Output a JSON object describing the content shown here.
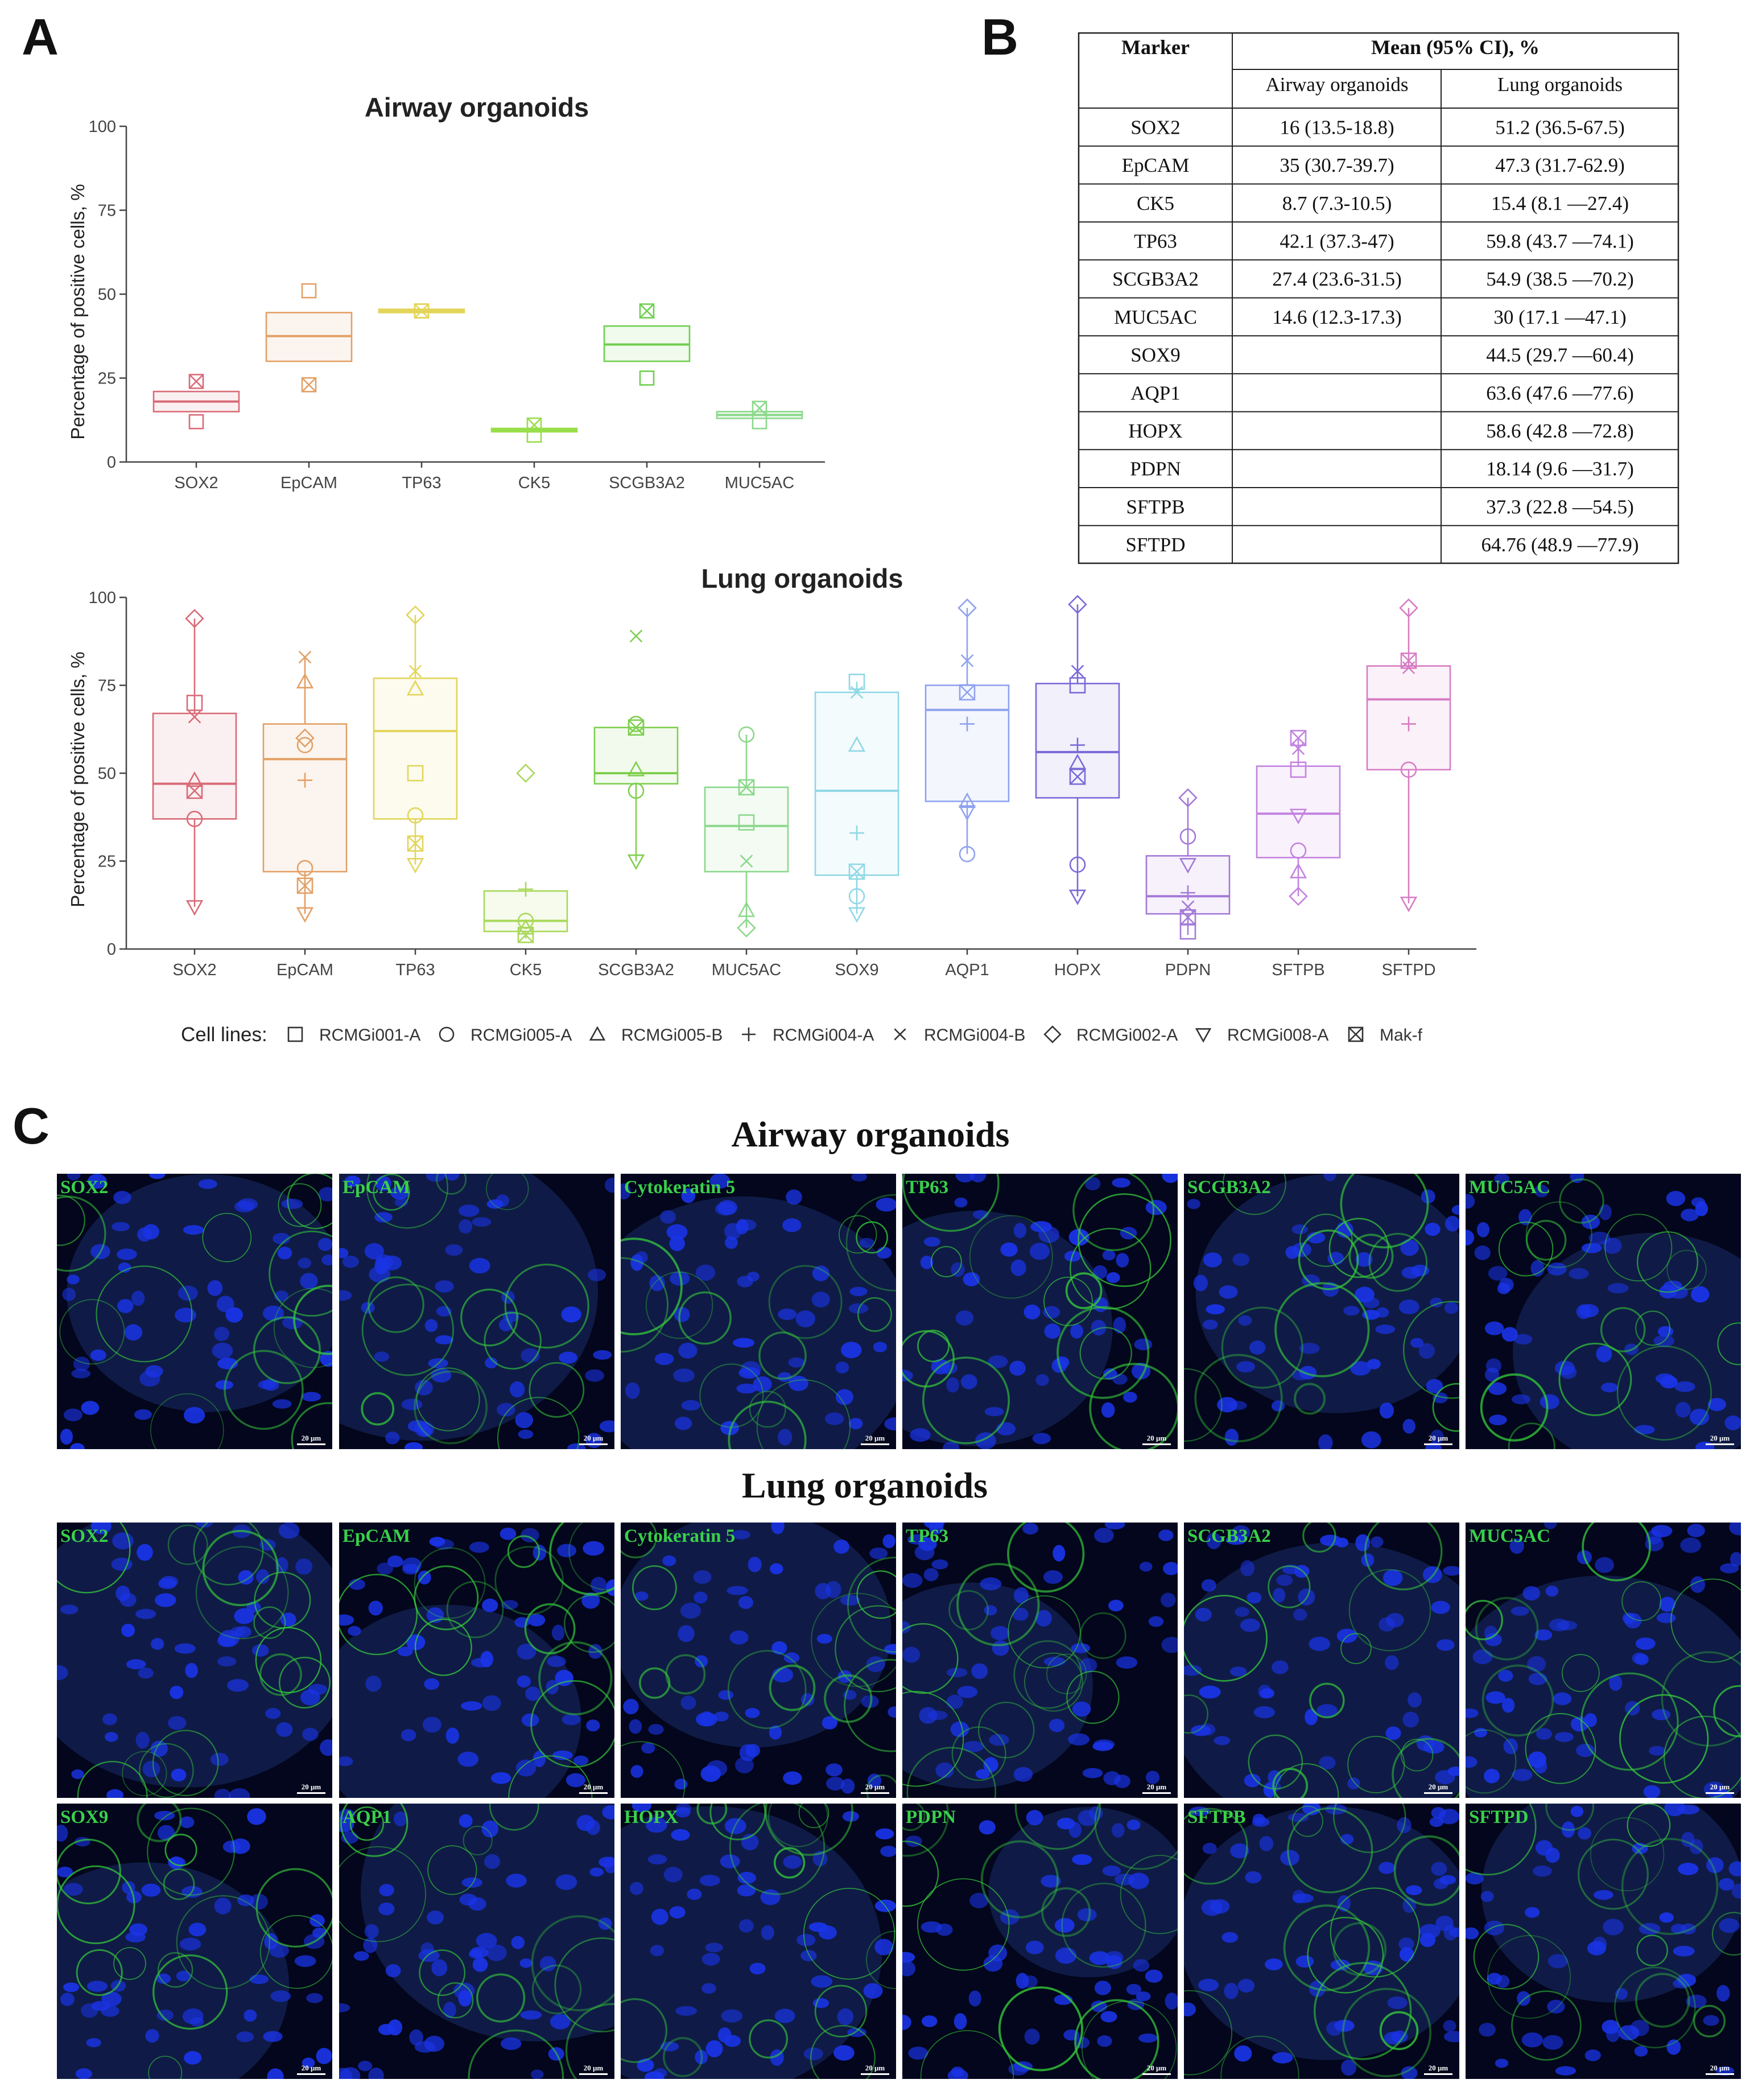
{
  "panel_letters": {
    "a": "A",
    "b": "B",
    "c": "C"
  },
  "chart_data": [
    {
      "type": "box",
      "title": "Airway organoids",
      "ylabel": "Percentage of positive cells, %",
      "ylim": [
        0,
        100
      ],
      "yticks": [
        "0",
        "25",
        "50",
        "75",
        "100"
      ],
      "categories": [
        "SOX2",
        "EpCAM",
        "TP63",
        "CK5",
        "SCGB3A2",
        "MUC5AC"
      ],
      "colors": [
        "#d96b78",
        "#e3a066",
        "#e3d55a",
        "#98de4a",
        "#6fcf4f",
        "#8cd88c"
      ],
      "boxes": [
        {
          "q1": 15,
          "median": 18,
          "q3": 21,
          "whisker_low": 15,
          "whisker_high": 21
        },
        {
          "q1": 30,
          "median": 37.5,
          "q3": 44.5,
          "whisker_low": 30,
          "whisker_high": 44.5
        },
        {
          "q1": 44.5,
          "median": 45,
          "q3": 45.5,
          "whisker_low": 44.5,
          "whisker_high": 45.5
        },
        {
          "q1": 9,
          "median": 9.5,
          "q3": 10,
          "whisker_low": 9,
          "whisker_high": 10
        },
        {
          "q1": 30,
          "median": 35,
          "q3": 40.5,
          "whisker_low": 30,
          "whisker_high": 40.5
        },
        {
          "q1": 13,
          "median": 14,
          "q3": 15,
          "whisker_low": 13,
          "whisker_high": 15
        }
      ],
      "points": [
        [
          {
            "shape": "square",
            "value": 12
          },
          {
            "shape": "xsquare",
            "value": 24
          }
        ],
        [
          {
            "shape": "square",
            "value": 51
          },
          {
            "shape": "xsquare",
            "value": 23
          }
        ],
        [
          {
            "shape": "square",
            "value": 45
          },
          {
            "shape": "xsquare",
            "value": 45
          }
        ],
        [
          {
            "shape": "square",
            "value": 8
          },
          {
            "shape": "xsquare",
            "value": 11
          }
        ],
        [
          {
            "shape": "square",
            "value": 25
          },
          {
            "shape": "xsquare",
            "value": 45
          }
        ],
        [
          {
            "shape": "square",
            "value": 12
          },
          {
            "shape": "xsquare",
            "value": 16
          }
        ]
      ]
    },
    {
      "type": "box",
      "title": "Lung organoids",
      "ylabel": "Percentage of positive cells, %",
      "ylim": [
        0,
        100
      ],
      "yticks": [
        "0",
        "25",
        "50",
        "75",
        "100"
      ],
      "categories": [
        "SOX2",
        "EpCAM",
        "TP63",
        "CK5",
        "SCGB3A2",
        "MUC5AC",
        "SOX9",
        "AQP1",
        "HOPX",
        "PDPN",
        "SFTPB",
        "SFTPD"
      ],
      "colors": [
        "#d96b78",
        "#e3a066",
        "#e3d55a",
        "#a9d85a",
        "#7fcf4f",
        "#8cd88c",
        "#8fd8e6",
        "#8fa2f0",
        "#7a6ad8",
        "#a37ad8",
        "#c383e0",
        "#d77cc4"
      ],
      "boxes": [
        {
          "q1": 37,
          "median": 47,
          "q3": 67,
          "whisker_low": 12,
          "whisker_high": 94
        },
        {
          "q1": 22,
          "median": 54,
          "q3": 64,
          "whisker_low": 10,
          "whisker_high": 83
        },
        {
          "q1": 37,
          "median": 62,
          "q3": 77,
          "whisker_low": 24,
          "whisker_high": 95
        },
        {
          "q1": 5,
          "median": 8,
          "q3": 16.5,
          "whisker_low": 3,
          "whisker_high": 16.5
        },
        {
          "q1": 47,
          "median": 50,
          "q3": 63,
          "whisker_low": 25,
          "whisker_high": 63
        },
        {
          "q1": 22,
          "median": 35,
          "q3": 46,
          "whisker_low": 6,
          "whisker_high": 61
        },
        {
          "q1": 21,
          "median": 45,
          "q3": 73,
          "whisker_low": 10,
          "whisker_high": 76
        },
        {
          "q1": 42,
          "median": 68,
          "q3": 75,
          "whisker_low": 27,
          "whisker_high": 97
        },
        {
          "q1": 43,
          "median": 56,
          "q3": 75.5,
          "whisker_low": 15,
          "whisker_high": 98
        },
        {
          "q1": 10,
          "median": 15,
          "q3": 26.5,
          "whisker_low": 4,
          "whisker_high": 43
        },
        {
          "q1": 26,
          "median": 38.5,
          "q3": 52,
          "whisker_low": 15,
          "whisker_high": 60
        },
        {
          "q1": 51,
          "median": 71,
          "q3": 80.5,
          "whisker_low": 13,
          "whisker_high": 97
        }
      ],
      "points": [
        [
          {
            "shape": "diamond",
            "value": 94
          },
          {
            "shape": "square",
            "value": 70
          },
          {
            "shape": "x",
            "value": 66
          },
          {
            "shape": "triangle",
            "value": 48
          },
          {
            "shape": "xsquare",
            "value": 45
          },
          {
            "shape": "circle",
            "value": 37
          },
          {
            "shape": "tridown",
            "value": 12
          }
        ],
        [
          {
            "shape": "x",
            "value": 83
          },
          {
            "shape": "triangle",
            "value": 76
          },
          {
            "shape": "diamond",
            "value": 60
          },
          {
            "shape": "circle",
            "value": 58
          },
          {
            "shape": "plus",
            "value": 48
          },
          {
            "shape": "circle",
            "value": 23
          },
          {
            "shape": "xsquare",
            "value": 18
          },
          {
            "shape": "tridown",
            "value": 10
          }
        ],
        [
          {
            "shape": "diamond",
            "value": 95
          },
          {
            "shape": "x",
            "value": 79
          },
          {
            "shape": "triangle",
            "value": 74
          },
          {
            "shape": "square",
            "value": 50
          },
          {
            "shape": "circle",
            "value": 38
          },
          {
            "shape": "xsquare",
            "value": 30
          },
          {
            "shape": "tridown",
            "value": 24
          }
        ],
        [
          {
            "shape": "diamond",
            "value": 50
          },
          {
            "shape": "plus",
            "value": 17
          },
          {
            "shape": "circle",
            "value": 8
          },
          {
            "shape": "triangle",
            "value": 6
          },
          {
            "shape": "xsquare",
            "value": 4
          }
        ],
        [
          {
            "shape": "x",
            "value": 89
          },
          {
            "shape": "xsquare",
            "value": 63
          },
          {
            "shape": "circle",
            "value": 64
          },
          {
            "shape": "triangle",
            "value": 51
          },
          {
            "shape": "circle",
            "value": 45
          },
          {
            "shape": "tridown",
            "value": 25
          }
        ],
        [
          {
            "shape": "circle",
            "value": 61
          },
          {
            "shape": "xsquare",
            "value": 46
          },
          {
            "shape": "square",
            "value": 36
          },
          {
            "shape": "x",
            "value": 25
          },
          {
            "shape": "triangle",
            "value": 11
          },
          {
            "shape": "diamond",
            "value": 6
          }
        ],
        [
          {
            "shape": "square",
            "value": 76
          },
          {
            "shape": "x",
            "value": 73
          },
          {
            "shape": "triangle",
            "value": 58
          },
          {
            "shape": "plus",
            "value": 33
          },
          {
            "shape": "xsquare",
            "value": 22
          },
          {
            "shape": "circle",
            "value": 15
          },
          {
            "shape": "tridown",
            "value": 10
          }
        ],
        [
          {
            "shape": "diamond",
            "value": 97
          },
          {
            "shape": "x",
            "value": 82
          },
          {
            "shape": "xsquare",
            "value": 73
          },
          {
            "shape": "plus",
            "value": 64
          },
          {
            "shape": "triangle",
            "value": 42
          },
          {
            "shape": "tridown",
            "value": 39
          },
          {
            "shape": "circle",
            "value": 27
          }
        ],
        [
          {
            "shape": "diamond",
            "value": 98
          },
          {
            "shape": "x",
            "value": 79
          },
          {
            "shape": "square",
            "value": 75
          },
          {
            "shape": "plus",
            "value": 58
          },
          {
            "shape": "triangle",
            "value": 53
          },
          {
            "shape": "xsquare",
            "value": 49
          },
          {
            "shape": "circle",
            "value": 24
          },
          {
            "shape": "tridown",
            "value": 15
          }
        ],
        [
          {
            "shape": "diamond",
            "value": 43
          },
          {
            "shape": "circle",
            "value": 32
          },
          {
            "shape": "tridown",
            "value": 24
          },
          {
            "shape": "plus",
            "value": 16
          },
          {
            "shape": "x",
            "value": 12
          },
          {
            "shape": "xsquare",
            "value": 9
          },
          {
            "shape": "square",
            "value": 5
          }
        ],
        [
          {
            "shape": "xsquare",
            "value": 60
          },
          {
            "shape": "x",
            "value": 57
          },
          {
            "shape": "square",
            "value": 51
          },
          {
            "shape": "tridown",
            "value": 38
          },
          {
            "shape": "circle",
            "value": 28
          },
          {
            "shape": "triangle",
            "value": 22
          },
          {
            "shape": "diamond",
            "value": 15
          }
        ],
        [
          {
            "shape": "diamond",
            "value": 97
          },
          {
            "shape": "xsquare",
            "value": 82
          },
          {
            "shape": "x",
            "value": 80
          },
          {
            "shape": "plus",
            "value": 64
          },
          {
            "shape": "circle",
            "value": 51
          },
          {
            "shape": "tridown",
            "value": 13
          }
        ]
      ]
    },
    {
      "type": "table",
      "header": {
        "marker": "Marker",
        "mean": "Mean (95% CI), %",
        "airway": "Airway organoids",
        "lung": "Lung organoids"
      },
      "rows": [
        {
          "marker": "SOX2",
          "airway": "16 (13.5-18.8)",
          "lung": "51.2 (36.5-67.5)"
        },
        {
          "marker": "EpCAM",
          "airway": "35 (30.7-39.7)",
          "lung": "47.3 (31.7-62.9)"
        },
        {
          "marker": "CK5",
          "airway": "8.7 (7.3-10.5)",
          "lung": "15.4 (8.1 —27.4)"
        },
        {
          "marker": "TP63",
          "airway": "42.1 (37.3-47)",
          "lung": "59.8 (43.7 —74.1)"
        },
        {
          "marker": "SCGB3A2",
          "airway": "27.4 (23.6-31.5)",
          "lung": "54.9 (38.5 —70.2)"
        },
        {
          "marker": "MUC5AC",
          "airway": "14.6 (12.3-17.3)",
          "lung": "30 (17.1 —47.1)"
        },
        {
          "marker": "SOX9",
          "airway": "",
          "lung": "44.5 (29.7 —60.4)"
        },
        {
          "marker": "AQP1",
          "airway": "",
          "lung": "63.6 (47.6 —77.6)"
        },
        {
          "marker": "HOPX",
          "airway": "",
          "lung": "58.6 (42.8 —72.8)"
        },
        {
          "marker": "PDPN",
          "airway": "",
          "lung": "18.14 (9.6 —31.7)"
        },
        {
          "marker": "SFTPB",
          "airway": "",
          "lung": "37.3 (22.8 —54.5)"
        },
        {
          "marker": "SFTPD",
          "airway": "",
          "lung": "64.76 (48.9 —77.9)"
        }
      ]
    }
  ],
  "legend": {
    "label": "Cell lines:",
    "items": [
      {
        "shape": "square",
        "name": "RCMGi001-A"
      },
      {
        "shape": "circle",
        "name": "RCMGi005-A"
      },
      {
        "shape": "triangle",
        "name": "RCMGi005-B"
      },
      {
        "shape": "plus",
        "name": "RCMGi004-A"
      },
      {
        "shape": "x",
        "name": "RCMGi004-B"
      },
      {
        "shape": "diamond",
        "name": "RCMGi002-A"
      },
      {
        "shape": "tridown",
        "name": "RCMGi008-A"
      },
      {
        "shape": "xsquare",
        "name": "Mak-f"
      }
    ]
  },
  "micrographs": {
    "airway_title": "Airway organoids",
    "lung_title": "Lung organoids",
    "scale_bar": "20 μm",
    "airway": [
      "SOX2",
      "EpCAM",
      "Cytokeratin 5",
      "TP63",
      "SCGB3A2",
      "MUC5AC"
    ],
    "lung_row1": [
      "SOX2",
      "EpCAM",
      "Cytokeratin 5",
      "TP63",
      "SCGB3A2",
      "MUC5AC"
    ],
    "lung_row2": [
      "SOX9",
      "AQP1",
      "HOPX",
      "PDPN",
      "SFTPB",
      "SFTPD"
    ]
  },
  "colors": {
    "micro_label": "#3ad04a",
    "nucleus": "#1a34e8",
    "membrane": "#35c93a",
    "background": "#03061c"
  }
}
